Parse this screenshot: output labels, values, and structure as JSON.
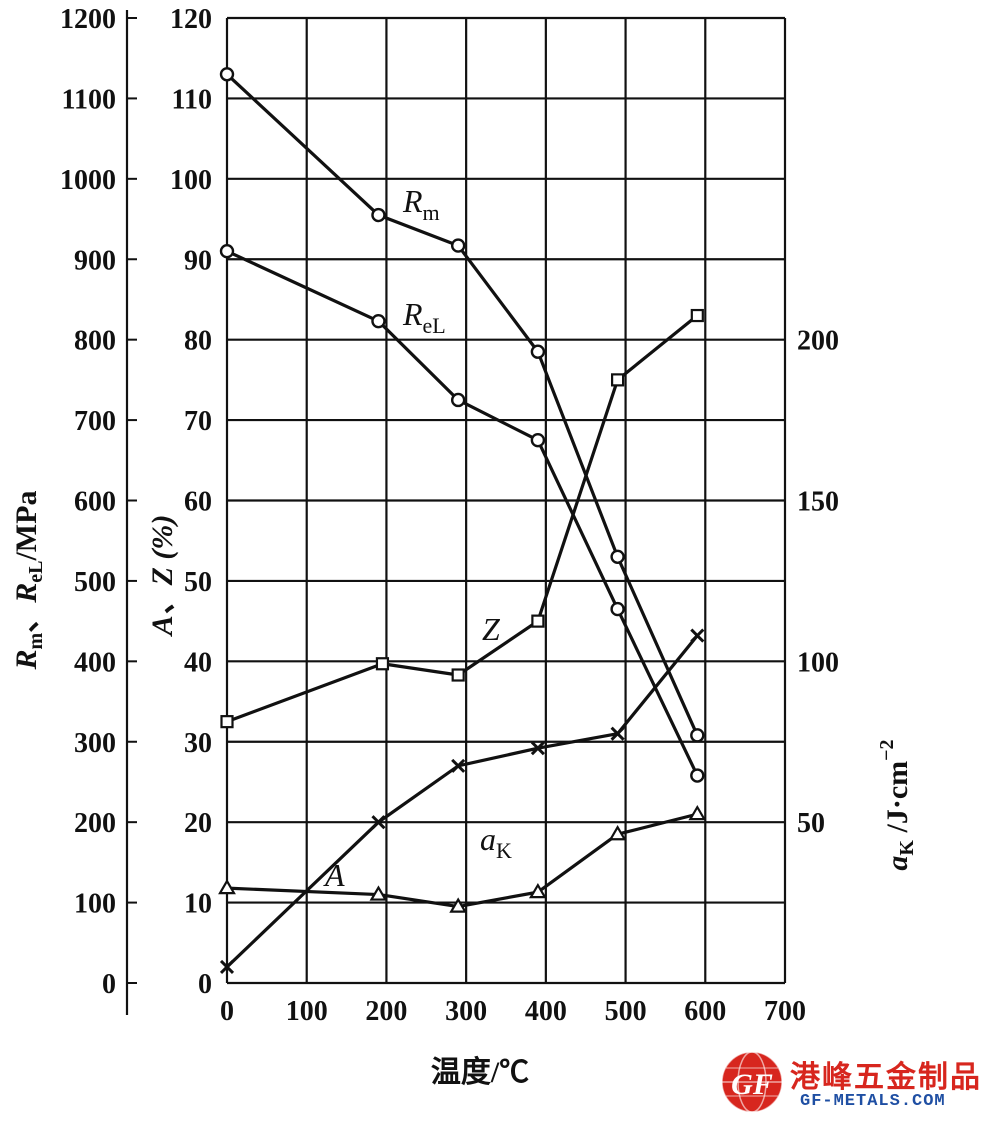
{
  "chart_data": {
    "type": "line",
    "xlabel": "温度/℃",
    "x_ticks": [
      "0",
      "100",
      "200",
      "300",
      "400",
      "500",
      "600",
      "700"
    ],
    "xlim": [
      0,
      700
    ],
    "grid": true,
    "axes": {
      "left_outer": {
        "label": "Rm、ReL/MPa",
        "label_parts": {
          "r1": "R",
          "r1_sub": "m",
          "sep": "、",
          "r2": "R",
          "r2_sub": "eL",
          "unit": "/MPa"
        },
        "ticks": [
          "0",
          "100",
          "200",
          "300",
          "400",
          "500",
          "600",
          "700",
          "800",
          "900",
          "1000",
          "1100",
          "1200"
        ],
        "ylim": [
          0,
          1200
        ]
      },
      "left_inner": {
        "label": "A、Z (%)",
        "ticks": [
          "0",
          "10",
          "20",
          "30",
          "40",
          "50",
          "60",
          "70",
          "80",
          "90",
          "100",
          "110",
          "120"
        ],
        "ylim": [
          0,
          120
        ]
      },
      "right": {
        "label": "aK /J·cm⁻²",
        "label_parts": {
          "a": "a",
          "a_sub": "K",
          "unit": " /J·cm",
          "exp": "−2"
        },
        "ticks": [
          "50",
          "100",
          "150",
          "200"
        ],
        "tick_values": [
          50,
          100,
          150,
          200
        ],
        "ylim": [
          0,
          300
        ]
      }
    },
    "series": [
      {
        "name": "Rm",
        "label_parts": [
          "R",
          "m"
        ],
        "axis": "left_outer",
        "marker": "circle",
        "x": [
          0,
          190,
          290,
          390,
          490,
          590
        ],
        "y": [
          1130,
          955,
          917,
          785,
          530,
          308
        ]
      },
      {
        "name": "ReL",
        "label_parts": [
          "R",
          "eL"
        ],
        "axis": "left_outer",
        "marker": "circle",
        "x": [
          0,
          190,
          290,
          390,
          490,
          590
        ],
        "y": [
          910,
          823,
          725,
          675,
          465,
          258
        ]
      },
      {
        "name": "Z",
        "label_parts": [
          "Z",
          ""
        ],
        "axis": "left_inner",
        "marker": "square",
        "x": [
          0,
          195,
          290,
          390,
          490,
          590
        ],
        "y": [
          32.5,
          39.7,
          38.3,
          45,
          75,
          83
        ]
      },
      {
        "name": "A",
        "label_parts": [
          "A",
          ""
        ],
        "axis": "left_inner",
        "marker": "triangle",
        "x": [
          0,
          190,
          290,
          390,
          490,
          590
        ],
        "y": [
          11.8,
          11,
          9.5,
          11.3,
          18.5,
          21
        ]
      },
      {
        "name": "aK",
        "label_parts": [
          "a",
          "K"
        ],
        "axis": "right",
        "marker": "cross",
        "x": [
          0,
          190,
          290,
          390,
          490,
          590
        ],
        "y": [
          5,
          50,
          67.5,
          73,
          77.5,
          108
        ]
      }
    ]
  },
  "watermark": {
    "cn": "港峰五金制品",
    "en": "GF-METALS.COM",
    "logo_text": "GF"
  }
}
